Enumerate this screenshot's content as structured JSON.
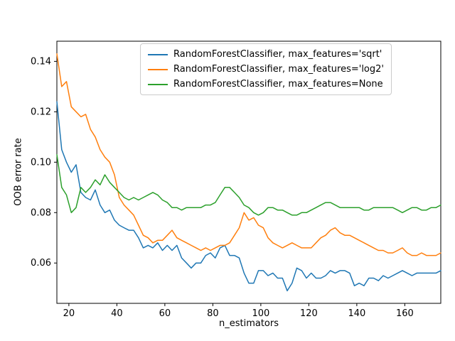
{
  "figure": {
    "background": "#ffffff"
  },
  "chart_data": {
    "type": "line",
    "xlabel": "n_estimators",
    "ylabel": "OOB error rate",
    "xlim": [
      15,
      175
    ],
    "ylim": [
      0.044,
      0.148
    ],
    "xticks": [
      20,
      40,
      60,
      80,
      100,
      120,
      140,
      160
    ],
    "yticks": [
      0.06,
      0.08,
      0.1,
      0.12,
      0.14
    ],
    "grid": false,
    "legend": {
      "loc": "upper center-right",
      "frame": true
    },
    "x": [
      15,
      17,
      19,
      21,
      23,
      25,
      27,
      29,
      31,
      33,
      35,
      37,
      39,
      41,
      43,
      45,
      47,
      49,
      51,
      53,
      55,
      57,
      59,
      61,
      63,
      65,
      67,
      69,
      71,
      73,
      75,
      77,
      79,
      81,
      83,
      85,
      87,
      89,
      91,
      93,
      95,
      97,
      99,
      101,
      103,
      105,
      107,
      109,
      111,
      113,
      115,
      117,
      119,
      121,
      123,
      125,
      127,
      129,
      131,
      133,
      135,
      137,
      139,
      141,
      143,
      145,
      147,
      149,
      151,
      153,
      155,
      157,
      159,
      161,
      163,
      165,
      167,
      169,
      171,
      173,
      175
    ],
    "series": [
      {
        "name": "RandomForestClassifier, max_features='sqrt'",
        "color": "#1f77b4",
        "values": [
          0.124,
          0.105,
          0.1,
          0.096,
          0.099,
          0.088,
          0.086,
          0.085,
          0.089,
          0.083,
          0.08,
          0.081,
          0.077,
          0.075,
          0.074,
          0.073,
          0.073,
          0.07,
          0.066,
          0.067,
          0.066,
          0.068,
          0.065,
          0.067,
          0.065,
          0.067,
          0.062,
          0.06,
          0.058,
          0.06,
          0.06,
          0.063,
          0.064,
          0.062,
          0.066,
          0.067,
          0.063,
          0.063,
          0.062,
          0.056,
          0.052,
          0.052,
          0.057,
          0.057,
          0.055,
          0.056,
          0.054,
          0.054,
          0.049,
          0.052,
          0.058,
          0.057,
          0.054,
          0.056,
          0.054,
          0.054,
          0.055,
          0.057,
          0.056,
          0.057,
          0.057,
          0.056,
          0.051,
          0.052,
          0.051,
          0.054,
          0.054,
          0.053,
          0.055,
          0.054,
          0.055,
          0.056,
          0.057,
          0.056,
          0.055,
          0.056,
          0.056,
          0.056,
          0.056,
          0.056,
          0.057
        ]
      },
      {
        "name": "RandomForestClassifier, max_features='log2'",
        "color": "#ff7f0e",
        "values": [
          0.143,
          0.13,
          0.132,
          0.122,
          0.12,
          0.118,
          0.119,
          0.113,
          0.11,
          0.105,
          0.102,
          0.1,
          0.095,
          0.086,
          0.083,
          0.081,
          0.079,
          0.075,
          0.071,
          0.07,
          0.068,
          0.069,
          0.069,
          0.071,
          0.073,
          0.07,
          0.069,
          0.068,
          0.067,
          0.066,
          0.065,
          0.066,
          0.065,
          0.066,
          0.067,
          0.067,
          0.068,
          0.071,
          0.074,
          0.08,
          0.077,
          0.078,
          0.075,
          0.074,
          0.07,
          0.068,
          0.067,
          0.066,
          0.067,
          0.068,
          0.067,
          0.066,
          0.066,
          0.066,
          0.068,
          0.07,
          0.071,
          0.073,
          0.074,
          0.072,
          0.071,
          0.071,
          0.07,
          0.069,
          0.068,
          0.067,
          0.066,
          0.065,
          0.065,
          0.064,
          0.064,
          0.065,
          0.066,
          0.064,
          0.063,
          0.063,
          0.064,
          0.063,
          0.063,
          0.063,
          0.064
        ]
      },
      {
        "name": "RandomForestClassifier, max_features=None",
        "color": "#2ca02c",
        "values": [
          0.103,
          0.09,
          0.087,
          0.08,
          0.082,
          0.09,
          0.088,
          0.09,
          0.093,
          0.091,
          0.095,
          0.092,
          0.09,
          0.088,
          0.086,
          0.085,
          0.086,
          0.085,
          0.086,
          0.087,
          0.088,
          0.087,
          0.085,
          0.084,
          0.082,
          0.082,
          0.081,
          0.082,
          0.082,
          0.082,
          0.082,
          0.083,
          0.083,
          0.084,
          0.087,
          0.09,
          0.09,
          0.088,
          0.086,
          0.083,
          0.082,
          0.08,
          0.079,
          0.08,
          0.082,
          0.082,
          0.081,
          0.081,
          0.08,
          0.079,
          0.079,
          0.08,
          0.08,
          0.081,
          0.082,
          0.083,
          0.084,
          0.084,
          0.083,
          0.082,
          0.082,
          0.082,
          0.082,
          0.082,
          0.081,
          0.081,
          0.082,
          0.082,
          0.082,
          0.082,
          0.082,
          0.081,
          0.08,
          0.081,
          0.082,
          0.082,
          0.081,
          0.081,
          0.082,
          0.082,
          0.083
        ]
      }
    ]
  }
}
